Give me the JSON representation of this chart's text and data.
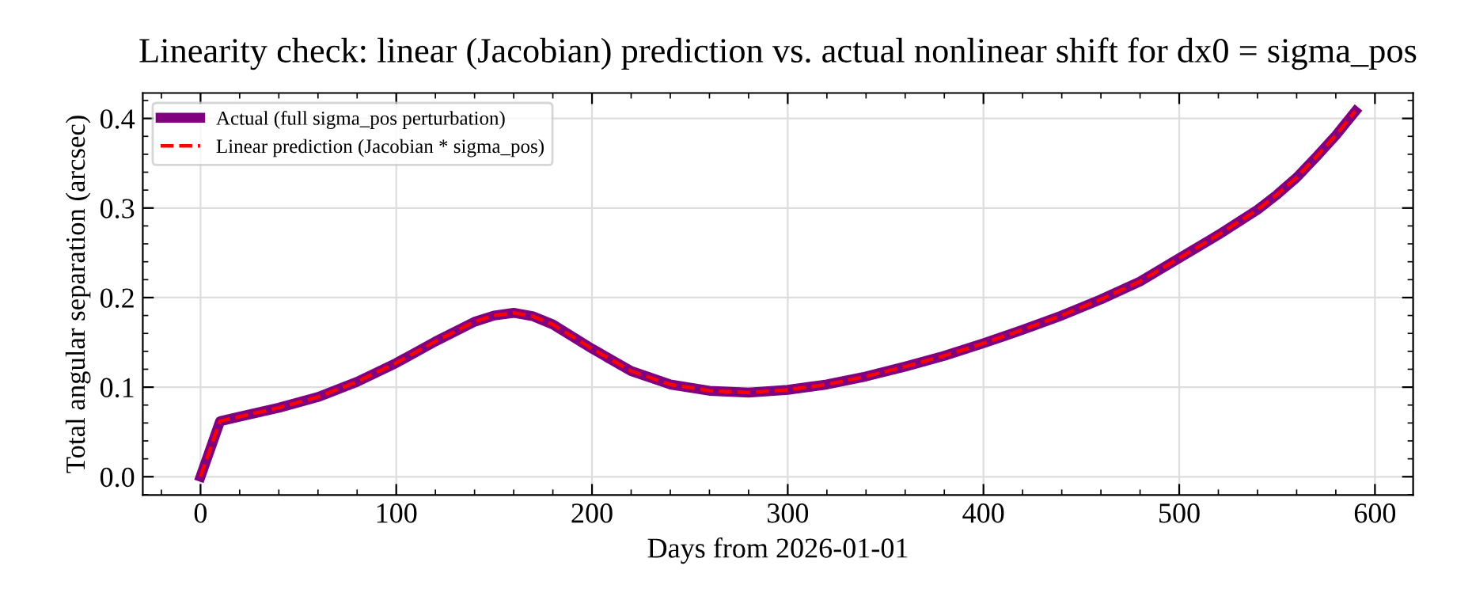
{
  "chart_data": {
    "type": "line",
    "title": "Linearity check: linear (Jacobian) prediction vs. actual nonlinear shift for dx0 = sigma_pos",
    "xlabel": "Days from 2026-01-01",
    "ylabel": "Total angular separation (arcsec)",
    "x": [
      0,
      10,
      20,
      40,
      60,
      80,
      100,
      120,
      140,
      150,
      160,
      170,
      180,
      200,
      220,
      240,
      260,
      280,
      300,
      320,
      340,
      360,
      380,
      400,
      420,
      440,
      460,
      480,
      500,
      520,
      540,
      550,
      560,
      570,
      580,
      590
    ],
    "series": [
      {
        "name": "Actual (full sigma_pos perturbation)",
        "color": "#800080",
        "line_style": "solid",
        "values": [
          0,
          0.062,
          0.067,
          0.077,
          0.089,
          0.106,
          0.127,
          0.151,
          0.173,
          0.18,
          0.183,
          0.179,
          0.17,
          0.143,
          0.118,
          0.103,
          0.096,
          0.094,
          0.097,
          0.103,
          0.112,
          0.123,
          0.135,
          0.149,
          0.164,
          0.18,
          0.198,
          0.218,
          0.244,
          0.27,
          0.298,
          0.315,
          0.334,
          0.357,
          0.381,
          0.408
        ]
      },
      {
        "name": "Linear prediction (Jacobian * sigma_pos)",
        "color": "#ff0000",
        "line_style": "dashed",
        "values": [
          0,
          0.062,
          0.067,
          0.077,
          0.089,
          0.106,
          0.127,
          0.151,
          0.173,
          0.18,
          0.183,
          0.179,
          0.17,
          0.143,
          0.118,
          0.103,
          0.096,
          0.094,
          0.097,
          0.103,
          0.112,
          0.123,
          0.135,
          0.149,
          0.164,
          0.18,
          0.198,
          0.218,
          0.244,
          0.27,
          0.298,
          0.315,
          0.334,
          0.357,
          0.381,
          0.408
        ]
      }
    ],
    "xlim": [
      -29.5,
      619.5
    ],
    "xticks": [
      0,
      100,
      200,
      300,
      400,
      500,
      600
    ],
    "ylim": [
      -0.0204,
      0.4284
    ],
    "yticks": [
      {
        "value": 0,
        "label": "0.0"
      },
      {
        "value": 0.1,
        "label": "0.1"
      },
      {
        "value": 0.2,
        "label": "0.2"
      },
      {
        "value": 0.3,
        "label": "0.3"
      },
      {
        "value": 0.4,
        "label": "0.4"
      }
    ],
    "grid": true,
    "legend": "top left"
  }
}
